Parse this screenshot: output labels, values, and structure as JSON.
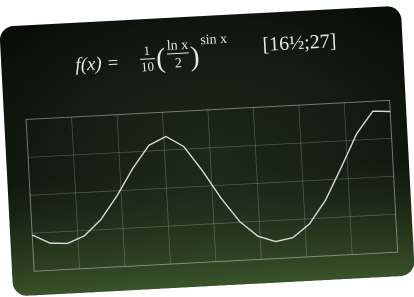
{
  "chart_data": {
    "type": "line",
    "formula": {
      "lhs": "f(x) =",
      "num": "1",
      "den": "10",
      "inner_num": "ln x",
      "inner_den": "2",
      "exponent": "sin x"
    },
    "interval": "[16½;27]",
    "x": [
      16.5,
      17,
      17.5,
      18,
      18.5,
      19,
      19.5,
      20,
      20.5,
      21,
      21.5,
      22,
      22.5,
      23,
      23.5,
      24,
      24.5,
      25,
      25.5,
      26,
      26.5,
      27
    ],
    "values": [
      0.0786,
      0.0715,
      0.0705,
      0.0758,
      0.0879,
      0.106,
      0.1271,
      0.1446,
      0.1508,
      0.1421,
      0.1223,
      0.0996,
      0.0806,
      0.0684,
      0.0634,
      0.0657,
      0.0758,
      0.0939,
      0.1189,
      0.1451,
      0.1622,
      0.1612
    ],
    "color": "#d8d8d8",
    "xlim": [
      16.5,
      27
    ],
    "ylim": [
      0.05,
      0.17
    ],
    "grid": true
  }
}
